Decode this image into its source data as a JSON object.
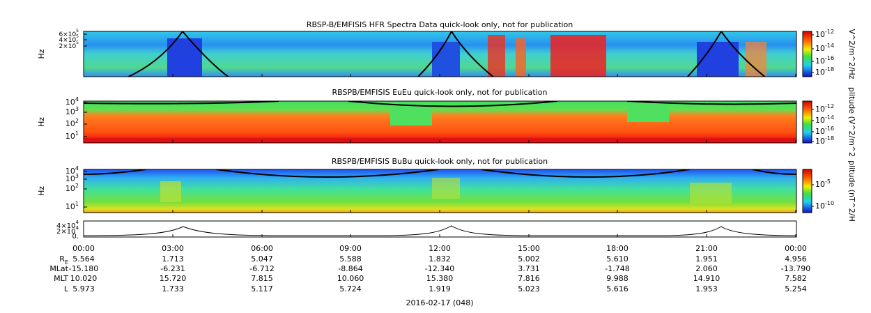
{
  "panels": [
    {
      "title": "RBSP-B/EMFISIS  HFR Spectra Data quick-look only, not for publication",
      "y_label": "Hz",
      "y_ticks": [
        {
          "mant": "6×",
          "base": "10",
          "exp": "5"
        },
        {
          "mant": "4×",
          "base": "10",
          "exp": "5"
        },
        {
          "mant": "2×",
          "base": "10",
          "exp": "5"
        }
      ],
      "colorbar_label": "V^2/m^2/Hz",
      "colorbar_ticks": [
        {
          "base": "10",
          "exp": "-12"
        },
        {
          "base": "10",
          "exp": "-14"
        },
        {
          "base": "10",
          "exp": "-16"
        },
        {
          "base": "10",
          "exp": "-18"
        }
      ]
    },
    {
      "title": "RBSPB/EMFISIS  EuEu quick-look only, not for publication",
      "y_label": "Hz",
      "y_ticks": [
        {
          "mant": "",
          "base": "10",
          "exp": "4"
        },
        {
          "mant": "",
          "base": "10",
          "exp": "3"
        },
        {
          "mant": "",
          "base": "10",
          "exp": "2"
        },
        {
          "mant": "",
          "base": "10",
          "exp": "1"
        }
      ],
      "colorbar_label": "plitude (V^2/m^2",
      "colorbar_ticks": [
        {
          "base": "10",
          "exp": "-12"
        },
        {
          "base": "10",
          "exp": "-14"
        },
        {
          "base": "10",
          "exp": "-16"
        },
        {
          "base": "10",
          "exp": "-18"
        }
      ]
    },
    {
      "title": "RBSPB/EMFISIS  BuBu quick-look only, not for publication",
      "y_label": "Hz",
      "y_ticks": [
        {
          "mant": "",
          "base": "10",
          "exp": "4"
        },
        {
          "mant": "",
          "base": "10",
          "exp": "3"
        },
        {
          "mant": "",
          "base": "10",
          "exp": "2"
        },
        {
          "mant": "",
          "base": "10",
          "exp": "1"
        }
      ],
      "colorbar_label": "plitude (nT^2/H",
      "colorbar_ticks": [
        {
          "base": "10",
          "exp": "-5"
        },
        {
          "base": "10",
          "exp": "-10"
        }
      ]
    }
  ],
  "line_panel": {
    "y_ticks": [
      {
        "mant": "4×",
        "base": "10",
        "exp": "4"
      },
      {
        "mant": "2×",
        "base": "10",
        "exp": "4"
      },
      {
        "mant": "0.",
        "base": "",
        "exp": ""
      }
    ]
  },
  "time_labels": [
    "00:00",
    "03:00",
    "06:00",
    "09:00",
    "12:00",
    "15:00",
    "18:00",
    "21:00",
    "00:00"
  ],
  "ephemeris": {
    "row_labels": [
      {
        "base": "R",
        "sub": "E"
      },
      {
        "base": "MLat",
        "sub": ""
      },
      {
        "base": "MLT",
        "sub": ""
      },
      {
        "base": "L",
        "sub": ""
      }
    ],
    "rows": [
      [
        "5.564",
        "1.713",
        "5.047",
        "5.588",
        "1.832",
        "5.002",
        "5.610",
        "1.951",
        "4.956"
      ],
      [
        "-15.180",
        "-6.231",
        "-6.712",
        "-8.864",
        "-12.340",
        "3.731",
        "-1.748",
        "2.060",
        "-13.790"
      ],
      [
        "10.020",
        "15.720",
        "7.815",
        "10.060",
        "15.380",
        "7.816",
        "9.988",
        "14.910",
        "7.582"
      ],
      [
        "5.973",
        "1.733",
        "5.117",
        "5.724",
        "1.919",
        "5.023",
        "5.616",
        "1.953",
        "5.254"
      ]
    ]
  },
  "date": "2016-02-17 (048)"
}
